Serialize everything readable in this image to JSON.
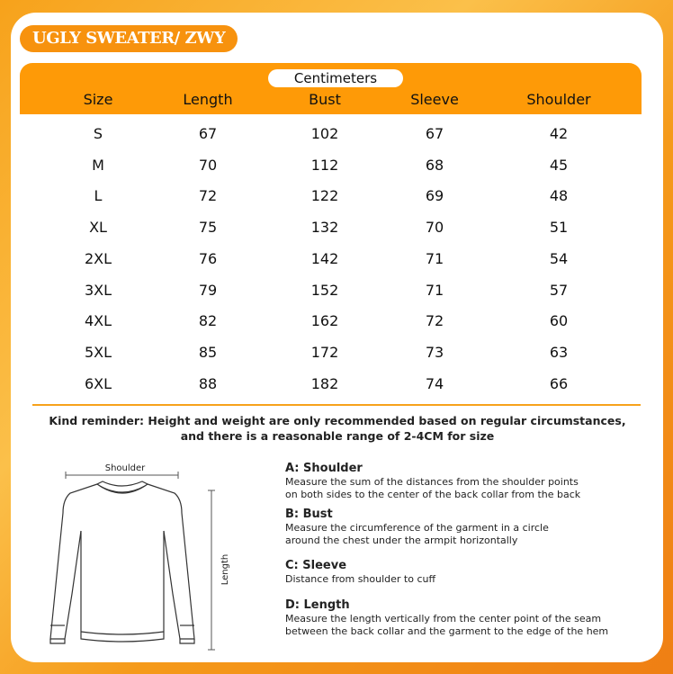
{
  "title": "UGLY SWEATER/ ZWY",
  "unit": "Centimeters",
  "columns": [
    "Size",
    "Length",
    "Bust",
    "Sleeve",
    "Shoulder"
  ],
  "rows": [
    [
      "S",
      "67",
      "102",
      "67",
      "42"
    ],
    [
      "M",
      "70",
      "112",
      "68",
      "45"
    ],
    [
      "L",
      "72",
      "122",
      "69",
      "48"
    ],
    [
      "XL",
      "75",
      "132",
      "70",
      "51"
    ],
    [
      "2XL",
      "76",
      "142",
      "71",
      "54"
    ],
    [
      "3XL",
      "79",
      "152",
      "71",
      "57"
    ],
    [
      "4XL",
      "82",
      "162",
      "72",
      "60"
    ],
    [
      "5XL",
      "85",
      "172",
      "73",
      "63"
    ],
    [
      "6XL",
      "88",
      "182",
      "74",
      "66"
    ]
  ],
  "reminder": [
    "Kind reminder: Height and weight are only recommended based on regular circumstances,",
    "and there is a reasonable range of 2-4CM for size"
  ],
  "diagram": {
    "shoulder_label": "Shoulder",
    "length_label": "Length"
  },
  "descriptions": [
    {
      "heading": "A: Shoulder",
      "lines": [
        "Measure the sum of the distances from the shoulder points",
        "on both sides to the center of the back collar from the back"
      ]
    },
    {
      "heading": "B: Bust",
      "lines": [
        "Measure the circumference of the garment in a circle",
        "around the chest under the armpit horizontally"
      ]
    },
    {
      "heading": "C: Sleeve",
      "lines": [
        "Distance from shoulder to cuff"
      ]
    },
    {
      "heading": "D: Length",
      "lines": [
        "Measure the length vertically from the center point of the seam",
        "between the back collar and the garment to the edge of the hem"
      ]
    }
  ],
  "colors": {
    "accent": "#fe9a07",
    "title_bg": "#f7920e"
  }
}
